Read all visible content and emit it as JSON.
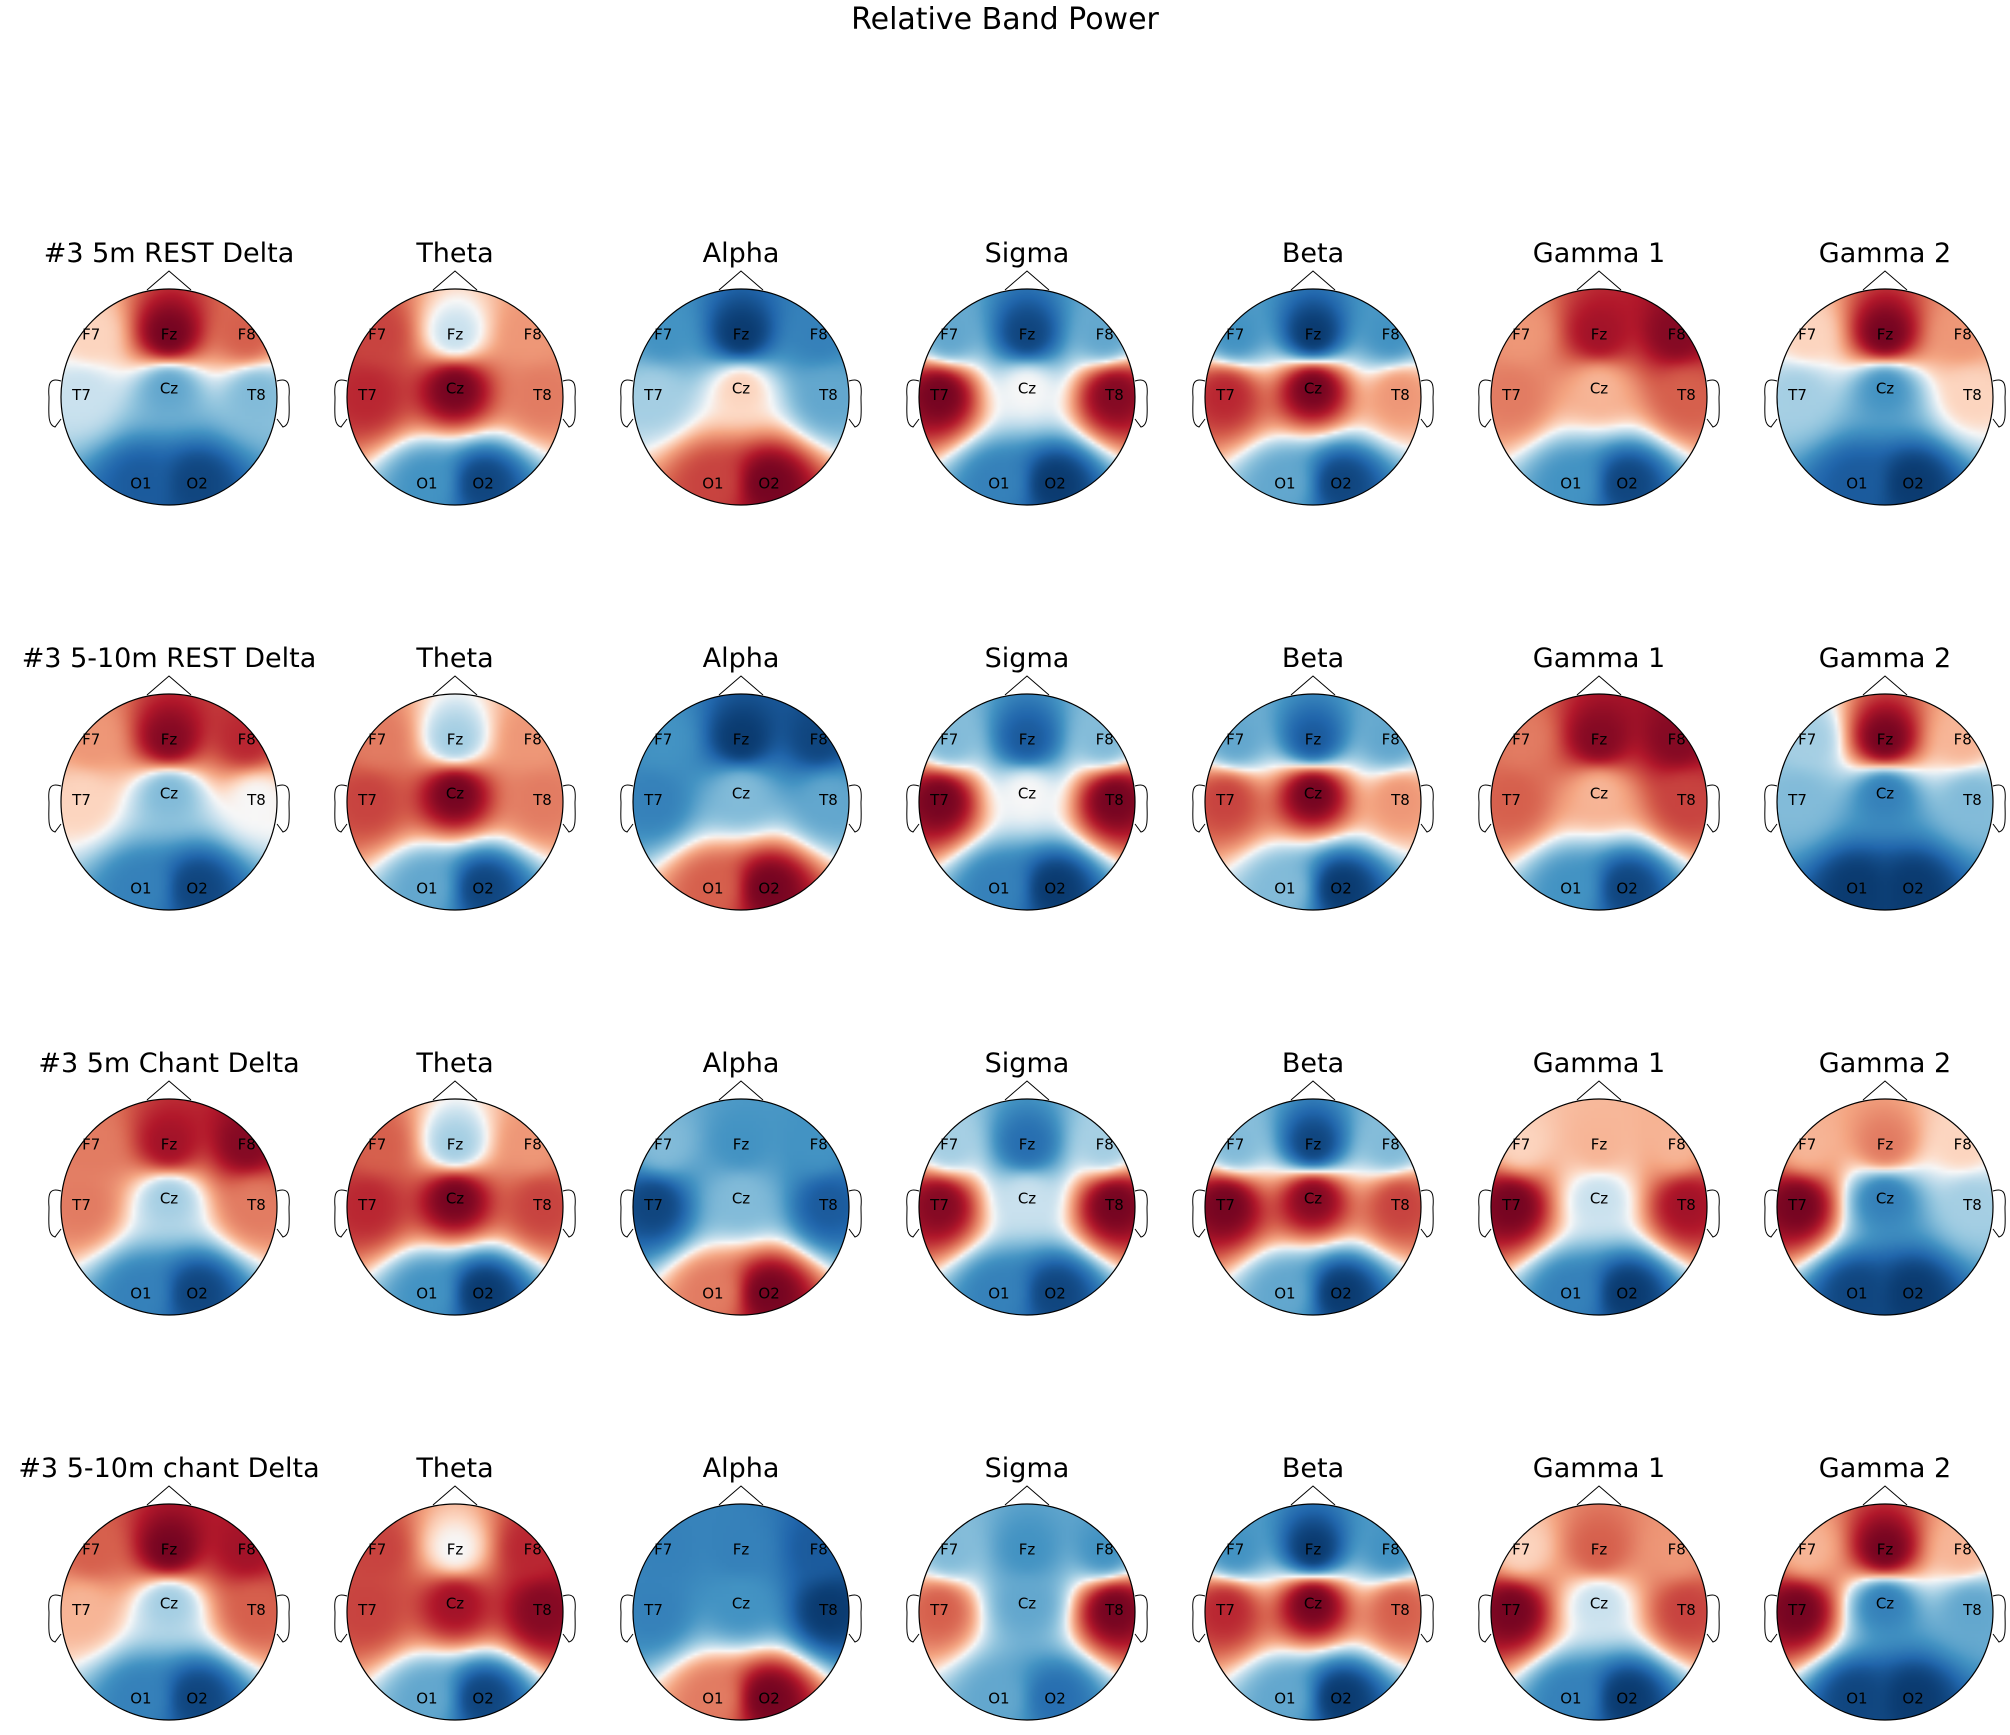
{
  "figure": {
    "title": "Relative Band Power"
  },
  "chart_data": {
    "type": "heatmap",
    "title": "Relative Band Power",
    "colormap": "RdBu_r",
    "colors": {
      "high": "#67001f",
      "mid": "#f7f7f7",
      "low": "#053061"
    },
    "channels": [
      "F7",
      "Fz",
      "F8",
      "T7",
      "Cz",
      "T8",
      "O1",
      "O2"
    ],
    "rows": [
      {
        "label": "#3 5m REST",
        "titles": [
          "#3 5m REST Delta",
          "Theta",
          "Alpha",
          "Sigma",
          "Beta",
          "Gamma 1",
          "Gamma 2"
        ],
        "maps": [
          [
            0.1,
            0.95,
            0.5,
            -0.1,
            -0.4,
            -0.3,
            -0.8,
            -0.9
          ],
          [
            0.6,
            -0.1,
            0.3,
            0.7,
            0.95,
            0.4,
            -0.5,
            -0.9
          ],
          [
            -0.5,
            -0.95,
            -0.6,
            -0.2,
            0.1,
            -0.4,
            0.6,
            0.95
          ],
          [
            -0.4,
            -0.9,
            -0.4,
            0.95,
            0.0,
            0.9,
            -0.6,
            -0.95
          ],
          [
            -0.5,
            -0.95,
            -0.5,
            0.7,
            0.95,
            0.3,
            -0.4,
            -0.9
          ],
          [
            0.3,
            0.8,
            0.9,
            0.4,
            0.2,
            0.5,
            -0.5,
            -0.9
          ],
          [
            0.1,
            0.95,
            0.3,
            -0.2,
            -0.5,
            0.1,
            -0.8,
            -0.95
          ]
        ]
      },
      {
        "label": "#3 5-10m REST",
        "titles": [
          "#3 5-10m REST Delta",
          "Theta",
          "Alpha",
          "Sigma",
          "Beta",
          "Gamma 1",
          "Gamma 2"
        ],
        "maps": [
          [
            0.3,
            0.9,
            0.7,
            0.1,
            -0.3,
            0.0,
            -0.6,
            -0.9
          ],
          [
            0.4,
            -0.2,
            0.3,
            0.6,
            0.95,
            0.4,
            -0.4,
            -0.9
          ],
          [
            -0.5,
            -0.95,
            -0.9,
            -0.6,
            -0.3,
            -0.4,
            0.5,
            0.95
          ],
          [
            -0.3,
            -0.8,
            -0.3,
            0.95,
            0.0,
            0.95,
            -0.6,
            -0.95
          ],
          [
            -0.4,
            -0.8,
            -0.4,
            0.6,
            0.95,
            0.3,
            -0.3,
            -0.95
          ],
          [
            0.4,
            0.9,
            0.9,
            0.5,
            0.2,
            0.6,
            -0.5,
            -0.9
          ],
          [
            -0.2,
            0.95,
            0.2,
            -0.3,
            -0.6,
            -0.3,
            -0.95,
            -0.95
          ]
        ]
      },
      {
        "label": "#3 5m Chant",
        "titles": [
          "#3 5m Chant Delta",
          "Theta",
          "Alpha",
          "Sigma",
          "Beta",
          "Gamma 1",
          "Gamma 2"
        ],
        "maps": [
          [
            0.4,
            0.8,
            0.9,
            0.4,
            -0.2,
            0.4,
            -0.6,
            -0.9
          ],
          [
            0.5,
            -0.2,
            0.3,
            0.7,
            0.95,
            0.6,
            -0.5,
            -0.95
          ],
          [
            -0.3,
            -0.5,
            -0.5,
            -0.9,
            -0.3,
            -0.8,
            0.4,
            0.95
          ],
          [
            -0.2,
            -0.7,
            -0.2,
            0.9,
            -0.1,
            0.95,
            -0.6,
            -0.9
          ],
          [
            -0.3,
            -0.9,
            -0.3,
            0.95,
            0.9,
            0.6,
            -0.4,
            -0.95
          ],
          [
            0.1,
            0.2,
            0.2,
            0.95,
            -0.1,
            0.8,
            -0.6,
            -0.95
          ],
          [
            0.2,
            0.4,
            0.1,
            0.95,
            -0.6,
            -0.2,
            -0.9,
            -0.95
          ]
        ]
      },
      {
        "label": "#3 5-10m chant",
        "titles": [
          "#3 5-10m chant Delta",
          "Theta",
          "Alpha",
          "Sigma",
          "Beta",
          "Gamma 1",
          "Gamma 2"
        ],
        "maps": [
          [
            0.5,
            0.95,
            0.8,
            0.2,
            -0.2,
            0.5,
            -0.6,
            -0.9
          ],
          [
            0.6,
            0.0,
            0.7,
            0.6,
            0.8,
            0.9,
            -0.4,
            -0.9
          ],
          [
            -0.6,
            -0.6,
            -0.8,
            -0.6,
            -0.5,
            -0.95,
            0.4,
            0.95
          ],
          [
            -0.3,
            -0.5,
            -0.5,
            0.5,
            -0.4,
            0.95,
            -0.4,
            -0.7
          ],
          [
            -0.5,
            -0.95,
            -0.5,
            0.7,
            0.95,
            0.5,
            -0.4,
            -0.95
          ],
          [
            0.1,
            0.5,
            0.3,
            0.95,
            -0.1,
            0.6,
            -0.6,
            -0.95
          ],
          [
            0.2,
            0.95,
            0.2,
            0.95,
            -0.6,
            -0.4,
            -0.9,
            -0.95
          ]
        ]
      }
    ]
  }
}
